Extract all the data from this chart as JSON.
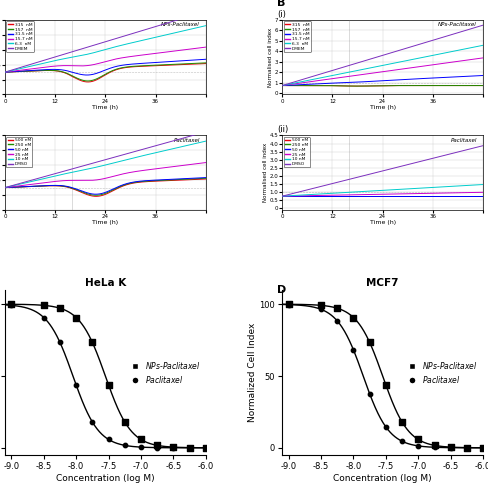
{
  "panel_A_title": "HeLa K",
  "panel_B_title": "MCF7",
  "panel_C_title": "HeLa K",
  "panel_D_title": "MCF7",
  "nps_legend_labels": [
    "315  nM",
    "157  nM",
    "31.5 nM",
    "15.7 nM",
    "6.3  nM",
    "DMEM"
  ],
  "nps_colors": [
    "#e8000b",
    "#1d8c00",
    "#0000ff",
    "#cc00cc",
    "#00cccc",
    "#7b2fbe"
  ],
  "ptx_legend_labels": [
    "500 nM",
    "250 nM",
    "50 nM",
    "25 nM",
    "10 nM",
    "DMSO"
  ],
  "ptx_colors": [
    "#e8000b",
    "#1d8c00",
    "#0000ff",
    "#cc00cc",
    "#00cccc",
    "#7b2fbe"
  ],
  "ylabel_rtca": "Normalised cell index",
  "xlabel_rtca": "Time (h)",
  "ylabel_dose": "Normalized Cell Index",
  "xlabel_dose": "Concentration (log M)",
  "dose_xlim": [
    -9.1,
    -6.0
  ],
  "dose_ylim": [
    -5,
    110
  ],
  "dose_xticks": [
    -9.0,
    -8.5,
    -8.0,
    -7.5,
    -7.0,
    -6.5,
    -6.0
  ],
  "dose_xtick_labels": [
    "-9.0",
    "-8.5",
    "-8.0",
    "-7.5",
    "-7.0",
    "-6.5",
    "-6.0"
  ],
  "hela_nps_ic50_logM": -7.55,
  "hela_ptx_ic50_logM": -8.05,
  "mcf7_nps_ic50_logM": -7.55,
  "mcf7_ptx_ic50_logM": -7.85,
  "background_color": "#ffffff",
  "rtca_bg": "#ffffff",
  "grid_color": "#cccccc"
}
